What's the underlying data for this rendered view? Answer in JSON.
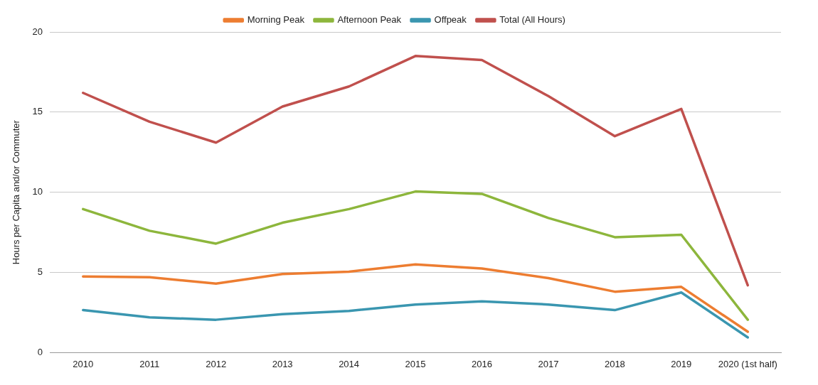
{
  "chart_data": {
    "type": "line",
    "ylabel": "Hours per Capita and/or Commuter",
    "categories": [
      "2010",
      "2011",
      "2012",
      "2013",
      "2014",
      "2015",
      "2016",
      "2017",
      "2018",
      "2019",
      "2020 (1st half)"
    ],
    "series": [
      {
        "name": "Morning Peak",
        "color": "#ed7d31",
        "values": [
          4.75,
          4.7,
          4.3,
          4.9,
          5.05,
          5.5,
          5.25,
          4.65,
          3.8,
          4.1,
          1.3
        ]
      },
      {
        "name": "Afternoon Peak",
        "color": "#8db63c",
        "values": [
          8.95,
          7.6,
          6.8,
          8.1,
          8.95,
          10.05,
          9.9,
          8.4,
          7.2,
          7.35,
          2.05
        ]
      },
      {
        "name": "Offpeak",
        "color": "#3a96b0",
        "values": [
          2.65,
          2.2,
          2.05,
          2.4,
          2.6,
          3.0,
          3.2,
          3.0,
          2.65,
          3.75,
          0.95
        ]
      },
      {
        "name": "Total (All Hours)",
        "color": "#c0504d",
        "values": [
          16.2,
          14.4,
          13.1,
          15.35,
          16.6,
          18.5,
          18.25,
          16.0,
          13.5,
          15.2,
          4.2
        ]
      }
    ],
    "ylim": [
      0,
      20
    ],
    "yticks": [
      0,
      5,
      10,
      15,
      20
    ],
    "grid": "y",
    "legend": "top",
    "marker": "none",
    "line_style": "solid"
  }
}
